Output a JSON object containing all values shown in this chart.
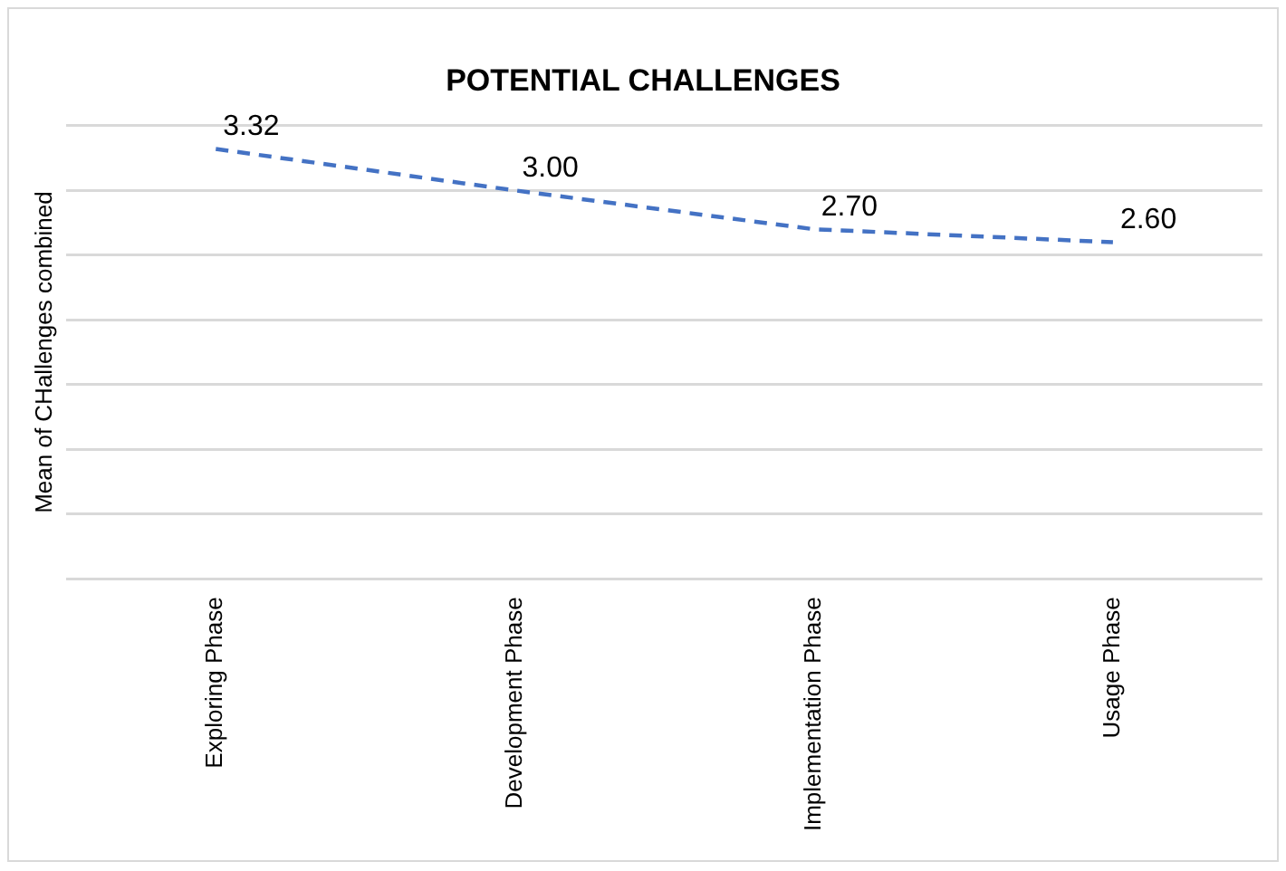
{
  "chart_data": {
    "type": "line",
    "title": "POTENTIAL CHALLENGES",
    "ylabel": "Mean of CHallenges combined",
    "categories": [
      "Exploring Phase",
      "Development Phase",
      "Implementation Phase",
      "Usage Phase"
    ],
    "series": [
      {
        "color": "#4472c4",
        "values": [
          3.32,
          3.0,
          2.7,
          2.6
        ],
        "value_labels": [
          "3.32",
          "3.00",
          "2.70",
          "2.60"
        ]
      }
    ],
    "ylim": [
      0,
      3.5
    ],
    "yticks": [
      {
        "value": 0,
        "label": null
      },
      {
        "value": 0.5,
        "label": null
      },
      {
        "value": 1,
        "label": null
      },
      {
        "value": 1.5,
        "label": null
      },
      {
        "value": 2,
        "label": null
      },
      {
        "value": 2.5,
        "label": null
      },
      {
        "value": 3,
        "label": null
      },
      {
        "value": 3.5,
        "label": null
      }
    ],
    "tick_labels": "x",
    "grid": "y",
    "legend": false,
    "marker": "none",
    "line_style": "dashed"
  }
}
